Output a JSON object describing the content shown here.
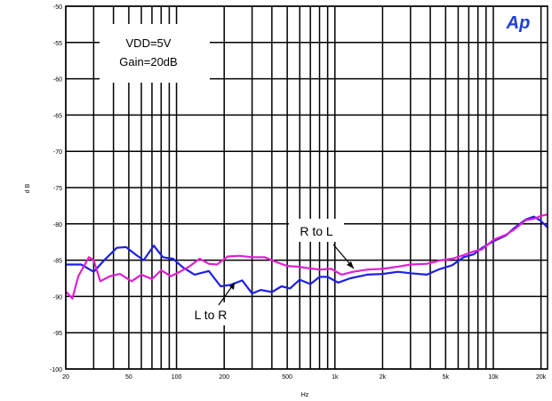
{
  "chart_data": {
    "type": "line",
    "title": "",
    "xlabel": "Hz",
    "ylabel": "d B",
    "x_scale": "log",
    "xlim": [
      20,
      22000
    ],
    "ylim": [
      -100,
      -50
    ],
    "grid": true,
    "yticks": [
      -50,
      -55,
      -60,
      -65,
      -70,
      -75,
      -80,
      -85,
      -90,
      -95,
      -100
    ],
    "xticks": [
      {
        "v": 20,
        "label": "20"
      },
      {
        "v": 50,
        "label": "50"
      },
      {
        "v": 100,
        "label": "100"
      },
      {
        "v": 200,
        "label": "200"
      },
      {
        "v": 500,
        "label": "500"
      },
      {
        "v": 1000,
        "label": "1k"
      },
      {
        "v": 2000,
        "label": "2k"
      },
      {
        "v": 5000,
        "label": "5k"
      },
      {
        "v": 10000,
        "label": "10k"
      },
      {
        "v": 20000,
        "label": "20k"
      }
    ],
    "conditions": [
      "VDD=5V",
      "Gain=20dB"
    ],
    "logo": "Ap",
    "series": [
      {
        "name": "L to R",
        "color": "#1f1fe6",
        "points": [
          [
            20,
            -85.6
          ],
          [
            25,
            -85.6
          ],
          [
            30,
            -86.6
          ],
          [
            35,
            -85.0
          ],
          [
            42,
            -83.3
          ],
          [
            48,
            -83.2
          ],
          [
            55,
            -84.2
          ],
          [
            62,
            -85.0
          ],
          [
            72,
            -83.0
          ],
          [
            82,
            -84.6
          ],
          [
            95,
            -84.8
          ],
          [
            110,
            -86.0
          ],
          [
            130,
            -87.0
          ],
          [
            160,
            -86.5
          ],
          [
            190,
            -88.6
          ],
          [
            220,
            -88.4
          ],
          [
            260,
            -87.8
          ],
          [
            300,
            -89.6
          ],
          [
            340,
            -89.1
          ],
          [
            400,
            -89.4
          ],
          [
            460,
            -88.6
          ],
          [
            520,
            -88.9
          ],
          [
            600,
            -87.7
          ],
          [
            700,
            -88.3
          ],
          [
            800,
            -87.3
          ],
          [
            900,
            -87.3
          ],
          [
            1050,
            -88.1
          ],
          [
            1250,
            -87.5
          ],
          [
            1600,
            -87.0
          ],
          [
            2000,
            -86.9
          ],
          [
            2500,
            -86.6
          ],
          [
            3000,
            -86.8
          ],
          [
            3800,
            -87.0
          ],
          [
            4500,
            -86.3
          ],
          [
            5500,
            -85.7
          ],
          [
            6500,
            -84.6
          ],
          [
            7500,
            -84.2
          ],
          [
            8500,
            -83.3
          ],
          [
            10000,
            -82.4
          ],
          [
            12000,
            -81.6
          ],
          [
            13500,
            -80.6
          ],
          [
            16000,
            -79.4
          ],
          [
            18000,
            -79.0
          ],
          [
            20000,
            -79.6
          ],
          [
            22000,
            -80.5
          ]
        ]
      },
      {
        "name": "R to L",
        "color": "#e01fd0",
        "points": [
          [
            20,
            -89.3
          ],
          [
            22,
            -90.3
          ],
          [
            24,
            -87.2
          ],
          [
            28,
            -84.6
          ],
          [
            30,
            -85.0
          ],
          [
            33,
            -87.9
          ],
          [
            38,
            -87.2
          ],
          [
            44,
            -86.9
          ],
          [
            52,
            -87.9
          ],
          [
            60,
            -87.0
          ],
          [
            70,
            -87.6
          ],
          [
            80,
            -86.4
          ],
          [
            92,
            -87.2
          ],
          [
            105,
            -86.6
          ],
          [
            120,
            -85.9
          ],
          [
            140,
            -84.8
          ],
          [
            160,
            -85.5
          ],
          [
            180,
            -85.6
          ],
          [
            210,
            -84.5
          ],
          [
            250,
            -84.4
          ],
          [
            300,
            -84.6
          ],
          [
            360,
            -84.6
          ],
          [
            430,
            -85.3
          ],
          [
            500,
            -85.8
          ],
          [
            580,
            -85.9
          ],
          [
            680,
            -86.1
          ],
          [
            800,
            -86.3
          ],
          [
            950,
            -86.2
          ],
          [
            1100,
            -87.0
          ],
          [
            1300,
            -86.6
          ],
          [
            1600,
            -86.3
          ],
          [
            2000,
            -86.2
          ],
          [
            2500,
            -85.9
          ],
          [
            3000,
            -85.6
          ],
          [
            3800,
            -85.5
          ],
          [
            4700,
            -85.0
          ],
          [
            5500,
            -84.8
          ],
          [
            6500,
            -84.3
          ],
          [
            7500,
            -83.8
          ],
          [
            8500,
            -83.5
          ],
          [
            10000,
            -82.2
          ],
          [
            12000,
            -81.5
          ],
          [
            13500,
            -80.8
          ],
          [
            16000,
            -79.5
          ],
          [
            18000,
            -79.3
          ],
          [
            20000,
            -78.9
          ],
          [
            22000,
            -78.7
          ]
        ]
      }
    ]
  }
}
